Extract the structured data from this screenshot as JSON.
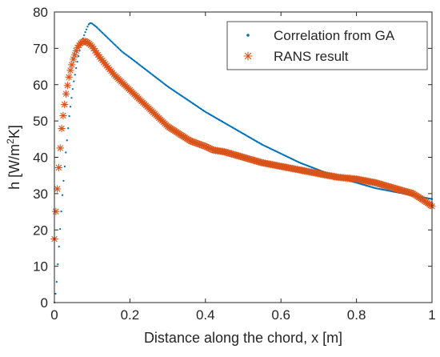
{
  "chart_data": {
    "type": "scatter",
    "title": "",
    "xlabel": "Distance along the chord, x [m]",
    "ylabel": {
      "prefix": "h [W/m",
      "superscript": "2",
      "suffix": "K]"
    },
    "xlim": [
      0,
      1
    ],
    "ylim": [
      0,
      80
    ],
    "x_ticks": [
      0,
      0.2,
      0.4,
      0.6,
      0.8,
      1
    ],
    "x_tick_labels": [
      "0",
      "0.2",
      "0.4",
      "0.6",
      "0.8",
      "1"
    ],
    "y_ticks": [
      0,
      10,
      20,
      30,
      40,
      50,
      60,
      70,
      80
    ],
    "y_tick_labels": [
      "0",
      "10",
      "20",
      "30",
      "40",
      "50",
      "60",
      "70",
      "80"
    ],
    "grid": false,
    "legend_position": "top-right",
    "series": [
      {
        "name": "Correlation from GA",
        "marker": "dot",
        "color": "#0072BD",
        "x": [
          0.0,
          0.005,
          0.01,
          0.02,
          0.03,
          0.04,
          0.05,
          0.06,
          0.07,
          0.08,
          0.09,
          0.095,
          0.1,
          0.11,
          0.12,
          0.14,
          0.16,
          0.18,
          0.2,
          0.25,
          0.3,
          0.35,
          0.4,
          0.45,
          0.5,
          0.55,
          0.6,
          0.65,
          0.7,
          0.75,
          0.8,
          0.85,
          0.9,
          0.95,
          1.0
        ],
        "y": [
          0,
          4,
          12,
          28,
          41,
          52,
          60,
          66,
          71,
          74,
          76.5,
          77,
          76.8,
          76,
          75,
          73,
          71,
          69,
          67.5,
          63.5,
          59.5,
          56,
          52.5,
          49.5,
          46.5,
          43.5,
          41,
          38.5,
          36.5,
          34.5,
          33,
          31.5,
          30.5,
          29.5,
          28.5
        ]
      },
      {
        "name": "RANS result",
        "marker": "asterisk",
        "color": "#D95319",
        "x": [
          0.0,
          0.002,
          0.005,
          0.01,
          0.015,
          0.02,
          0.03,
          0.04,
          0.05,
          0.06,
          0.07,
          0.08,
          0.09,
          0.1,
          0.11,
          0.12,
          0.14,
          0.16,
          0.18,
          0.2,
          0.22,
          0.25,
          0.28,
          0.3,
          0.33,
          0.36,
          0.4,
          0.42,
          0.45,
          0.5,
          0.55,
          0.6,
          0.65,
          0.7,
          0.75,
          0.8,
          0.85,
          0.9,
          0.95,
          0.98,
          1.0
        ],
        "y": [
          17.5,
          22,
          27,
          35,
          42,
          49,
          57,
          63,
          67,
          70,
          71.5,
          72,
          71.5,
          70.5,
          69,
          67.5,
          65,
          62.5,
          60.5,
          58.5,
          56.5,
          53.5,
          50.5,
          48.5,
          46.5,
          44.5,
          43,
          42,
          41.5,
          40,
          38.5,
          37.5,
          36.5,
          35.5,
          34.5,
          34,
          33,
          31.5,
          30,
          28,
          26.5
        ]
      }
    ]
  }
}
